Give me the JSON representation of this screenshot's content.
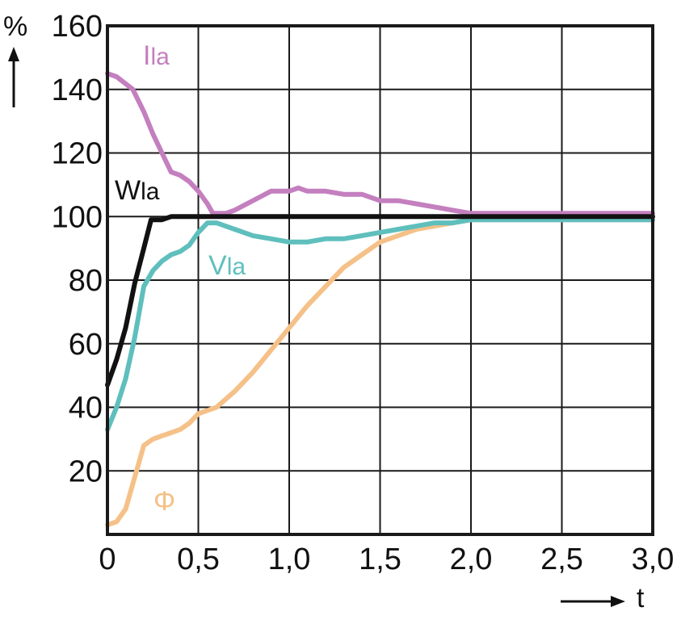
{
  "chart_data": {
    "type": "line",
    "title": "",
    "ylabel": "%",
    "xlabel": "t",
    "xlim": [
      0,
      3.0
    ],
    "ylim": [
      0,
      160
    ],
    "grid": true,
    "legend": "inline labels",
    "x_ticks": [
      {
        "value": 0,
        "label": "0"
      },
      {
        "value": 0.5,
        "label": "0,5"
      },
      {
        "value": 1.0,
        "label": "1,0"
      },
      {
        "value": 1.5,
        "label": "1,5"
      },
      {
        "value": 2.0,
        "label": "2,0"
      },
      {
        "value": 2.5,
        "label": "2,5"
      },
      {
        "value": 3.0,
        "label": "3,0"
      }
    ],
    "y_ticks": [
      {
        "value": 20,
        "label": "20"
      },
      {
        "value": 40,
        "label": "40"
      },
      {
        "value": 60,
        "label": "60"
      },
      {
        "value": 80,
        "label": "80"
      },
      {
        "value": 100,
        "label": "100"
      },
      {
        "value": 120,
        "label": "120"
      },
      {
        "value": 140,
        "label": "140"
      },
      {
        "value": 160,
        "label": "160"
      }
    ],
    "series": [
      {
        "name": "Ila",
        "label_main": "I",
        "label_sub": "la",
        "color": "#c47fbf",
        "points": [
          [
            0,
            145
          ],
          [
            0.05,
            144
          ],
          [
            0.14,
            140
          ],
          [
            0.2,
            133
          ],
          [
            0.25,
            126
          ],
          [
            0.3,
            120
          ],
          [
            0.35,
            114
          ],
          [
            0.4,
            113
          ],
          [
            0.45,
            111
          ],
          [
            0.5,
            108
          ],
          [
            0.55,
            104
          ],
          [
            0.58,
            101
          ],
          [
            0.6,
            101
          ],
          [
            0.65,
            101
          ],
          [
            0.7,
            102
          ],
          [
            0.8,
            105
          ],
          [
            0.9,
            108
          ],
          [
            1.0,
            108
          ],
          [
            1.05,
            109
          ],
          [
            1.1,
            108
          ],
          [
            1.2,
            108
          ],
          [
            1.3,
            107
          ],
          [
            1.4,
            107
          ],
          [
            1.5,
            105
          ],
          [
            1.6,
            105
          ],
          [
            1.7,
            104
          ],
          [
            1.8,
            103
          ],
          [
            1.9,
            102
          ],
          [
            2.0,
            101
          ],
          [
            2.5,
            101
          ],
          [
            3.0,
            101
          ]
        ]
      },
      {
        "name": "Wla",
        "label_main": "W",
        "label_sub": "la",
        "color": "#111111",
        "points": [
          [
            0,
            47
          ],
          [
            0.05,
            55
          ],
          [
            0.1,
            65
          ],
          [
            0.15,
            79
          ],
          [
            0.2,
            90
          ],
          [
            0.24,
            99
          ],
          [
            0.3,
            99
          ],
          [
            0.35,
            100
          ],
          [
            0.5,
            100
          ],
          [
            1.0,
            100
          ],
          [
            1.5,
            100
          ],
          [
            2.0,
            100
          ],
          [
            2.5,
            100
          ],
          [
            3.0,
            100
          ]
        ]
      },
      {
        "name": "Vla",
        "label_main": "V",
        "label_sub": "la",
        "color": "#5fbfbd",
        "points": [
          [
            0,
            33
          ],
          [
            0.05,
            40
          ],
          [
            0.1,
            49
          ],
          [
            0.15,
            62
          ],
          [
            0.2,
            78
          ],
          [
            0.25,
            83
          ],
          [
            0.3,
            86
          ],
          [
            0.35,
            88
          ],
          [
            0.4,
            89
          ],
          [
            0.45,
            91
          ],
          [
            0.5,
            95
          ],
          [
            0.55,
            98
          ],
          [
            0.6,
            98
          ],
          [
            0.65,
            97
          ],
          [
            0.7,
            96
          ],
          [
            0.8,
            94
          ],
          [
            0.9,
            93
          ],
          [
            1.0,
            92
          ],
          [
            1.1,
            92
          ],
          [
            1.2,
            93
          ],
          [
            1.3,
            93
          ],
          [
            1.4,
            94
          ],
          [
            1.5,
            95
          ],
          [
            1.6,
            96
          ],
          [
            1.7,
            97
          ],
          [
            1.8,
            98
          ],
          [
            1.9,
            98
          ],
          [
            2.0,
            99
          ],
          [
            2.5,
            99
          ],
          [
            3.0,
            99
          ]
        ]
      },
      {
        "name": "Φ",
        "label_main": "Φ",
        "label_sub": "",
        "color": "#f5c188",
        "points": [
          [
            0,
            3
          ],
          [
            0.05,
            4
          ],
          [
            0.1,
            8
          ],
          [
            0.15,
            18
          ],
          [
            0.2,
            28
          ],
          [
            0.25,
            30
          ],
          [
            0.3,
            31
          ],
          [
            0.35,
            32
          ],
          [
            0.4,
            33
          ],
          [
            0.45,
            35
          ],
          [
            0.5,
            38
          ],
          [
            0.55,
            39
          ],
          [
            0.6,
            40
          ],
          [
            0.7,
            45
          ],
          [
            0.8,
            51
          ],
          [
            0.9,
            58
          ],
          [
            1.0,
            65
          ],
          [
            1.1,
            72
          ],
          [
            1.2,
            78
          ],
          [
            1.3,
            84
          ],
          [
            1.4,
            88
          ],
          [
            1.5,
            92
          ],
          [
            1.6,
            94
          ],
          [
            1.7,
            96
          ],
          [
            1.8,
            97
          ],
          [
            1.9,
            98
          ],
          [
            2.0,
            99
          ],
          [
            2.5,
            99
          ],
          [
            3.0,
            99
          ]
        ]
      }
    ]
  }
}
